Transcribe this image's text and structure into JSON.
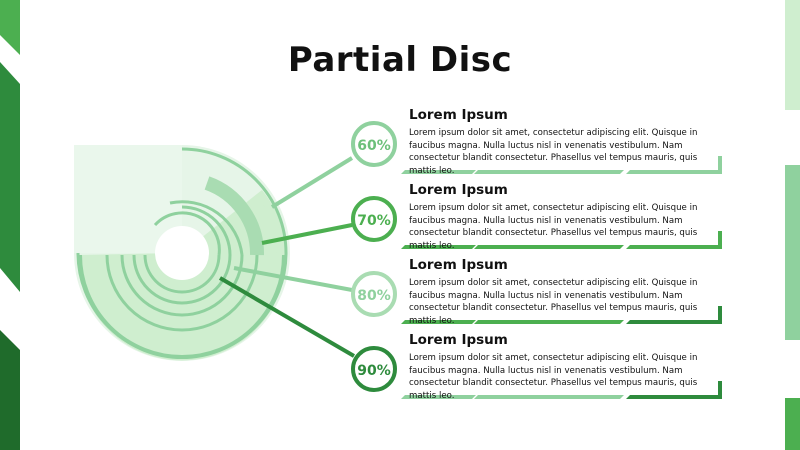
{
  "title": "Partial Disc",
  "colors": {
    "dark": "#2e8b3d",
    "mid": "#4caf50",
    "light": "#8fd19e",
    "pale": "#cfeecf",
    "paler": "#e6f5e8"
  },
  "items": [
    {
      "percent": "60%",
      "heading": "Lorem Ipsum",
      "text": "Lorem ipsum dolor sit amet, consectetur adipiscing elit. Quisque in faucibus magna. Nulla luctus nisl in venenatis vestibulum. Nam consectetur blandit consectetur. Phasellus vel tempus mauris, quis mattis leo."
    },
    {
      "percent": "70%",
      "heading": "Lorem Ipsum",
      "text": "Lorem ipsum dolor sit amet, consectetur adipiscing elit. Quisque in faucibus magna. Nulla luctus nisl in venenatis vestibulum. Nam consectetur blandit consectetur. Phasellus vel tempus mauris, quis mattis leo."
    },
    {
      "percent": "80%",
      "heading": "Lorem Ipsum",
      "text": "Lorem ipsum dolor sit amet, consectetur adipiscing elit. Quisque in faucibus magna. Nulla luctus nisl in venenatis vestibulum. Nam consectetur blandit consectetur. Phasellus vel tempus mauris, quis mattis leo."
    },
    {
      "percent": "90%",
      "heading": "Lorem Ipsum",
      "text": "Lorem ipsum dolor sit amet, consectetur adipiscing elit. Quisque in faucibus magna. Nulla luctus nisl in venenatis vestibulum. Nam consectetur blandit consectetur. Phasellus vel tempus mauris, quis mattis leo."
    }
  ]
}
